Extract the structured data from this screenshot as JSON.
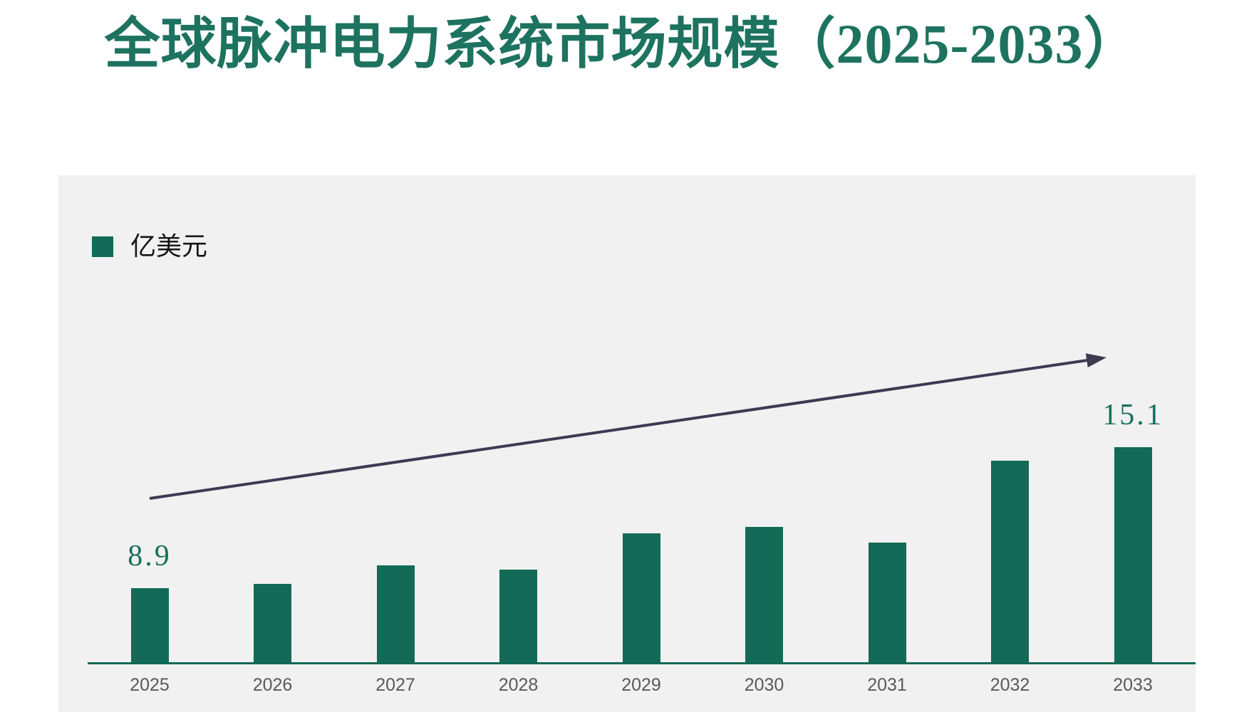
{
  "header": {
    "title": "全球脉冲电力系统市场规模（2025-2033）",
    "title_color": "#1d735f"
  },
  "legend": {
    "label": "亿美元",
    "swatch_color": "#136a56",
    "position": "top-left"
  },
  "chart_data": {
    "type": "bar",
    "title": "全球脉冲电力系统市场规模（2025-2033）",
    "unit": "亿美元",
    "categories": [
      "2025",
      "2026",
      "2027",
      "2028",
      "2029",
      "2030",
      "2031",
      "2032",
      "2033"
    ],
    "values": [
      8.9,
      9.1,
      9.9,
      9.7,
      11.3,
      11.6,
      10.9,
      14.5,
      15.1
    ],
    "value_labels": [
      "8.9",
      "",
      "",
      "",
      "",
      "",
      "",
      "",
      "15.1"
    ],
    "ylim": [
      5.65,
      17
    ],
    "grid": "off",
    "legend_position": "top-left",
    "bar_color": "#136a56",
    "value_label_color": "#17705c",
    "axis_line_color": "#106954",
    "tick_label_color": "#595959",
    "panel_background": "#f1f1f1",
    "annotations": {
      "trend_arrow": {
        "color": "#3e3a52",
        "from": [
          128,
          454
        ],
        "to": [
          1471,
          256
        ]
      }
    }
  }
}
